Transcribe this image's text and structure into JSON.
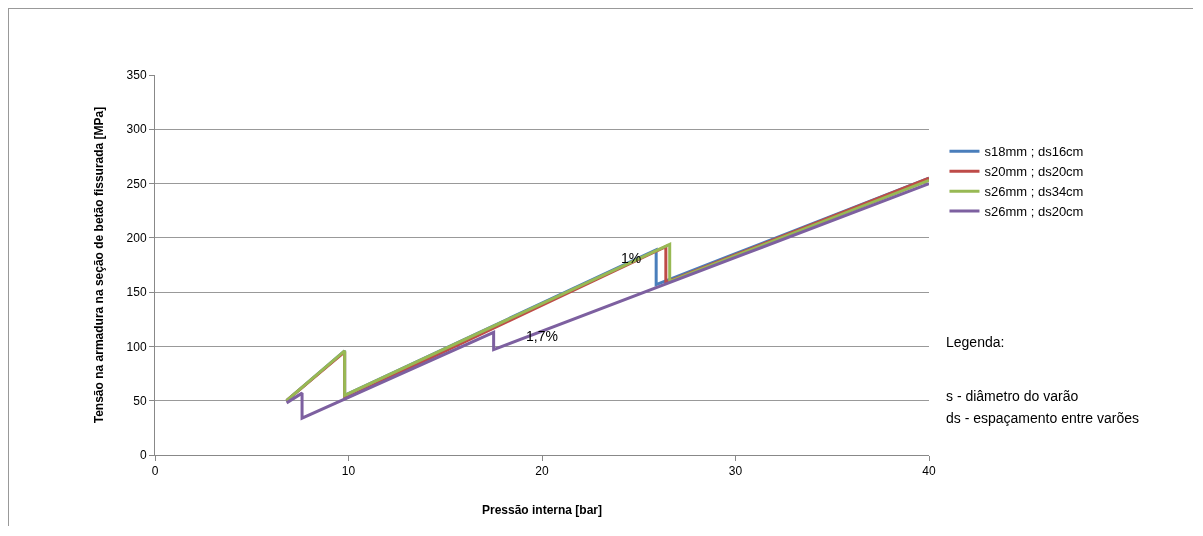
{
  "chart_data": {
    "type": "line",
    "xlabel": "Pressão interna [bar]",
    "ylabel": "Tensão na armadura na seção de betão fissurada [MPa]",
    "xlim": [
      0,
      40
    ],
    "xticks": [
      0,
      10,
      20,
      30,
      40
    ],
    "ylim": [
      0,
      350
    ],
    "yticks": [
      0,
      50,
      100,
      150,
      200,
      250,
      300,
      350
    ],
    "grid": "y",
    "legend": "right",
    "marker": "none",
    "line_style": "solid",
    "series": [
      {
        "name": "s18mm ; ds16cm",
        "color": "#4a7ebb",
        "x": [
          6.8,
          9.8,
          9.8,
          25.9,
          25.9,
          40
        ],
        "values": [
          50,
          96,
          55,
          189,
          157,
          255
        ]
      },
      {
        "name": "s20mm ; ds20cm",
        "color": "#be4b48",
        "x": [
          6.8,
          9.8,
          9.8,
          26.4,
          26.4,
          40
        ],
        "values": [
          50,
          95,
          52,
          192,
          159,
          255
        ]
      },
      {
        "name": "s26mm ; ds34cm",
        "color": "#98b954",
        "x": [
          6.8,
          9.8,
          9.8,
          26.6,
          26.6,
          40
        ],
        "values": [
          50,
          96,
          55,
          194,
          160,
          253
        ]
      },
      {
        "name": "s26mm ; ds20cm",
        "color": "#7d60a0",
        "x": [
          6.8,
          7.6,
          7.6,
          17.5,
          17.5,
          40
        ],
        "values": [
          48,
          57,
          34,
          113,
          97,
          250
        ]
      }
    ],
    "annotations": [
      {
        "text": "1%",
        "x": 24.6,
        "y": 181
      },
      {
        "text": "1,7%",
        "x": 20,
        "y": 110
      },
      "Legenda:",
      "s - diâmetro do varão",
      "ds - espaçamento entre varões"
    ]
  }
}
